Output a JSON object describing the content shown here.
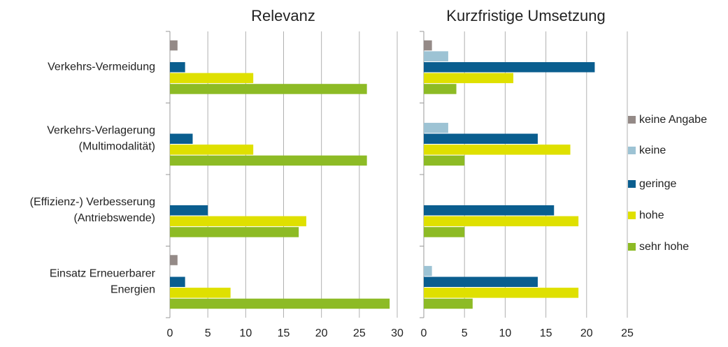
{
  "chart_data": [
    {
      "type": "bar",
      "orientation": "horizontal",
      "title": "Relevanz",
      "categories": [
        [
          "Verkehrs-Vermeidung"
        ],
        [
          "Verkehrs-Verlagerung",
          "(Multimodalität)"
        ],
        [
          "(Effizienz-) Verbesserung",
          "(Antriebswende)"
        ],
        [
          "Einsatz Erneuerbarer",
          "Energien"
        ]
      ],
      "series": [
        {
          "name": "keine Angabe",
          "color": "#948a87",
          "values": [
            1,
            0,
            0,
            1
          ]
        },
        {
          "name": "keine",
          "color": "#9dc3d4",
          "values": [
            0,
            0,
            0,
            0
          ]
        },
        {
          "name": "geringe",
          "color": "#0a5e8f",
          "values": [
            2,
            3,
            5,
            2
          ]
        },
        {
          "name": "hohe",
          "color": "#dfe000",
          "values": [
            11,
            11,
            18,
            8
          ]
        },
        {
          "name": "sehr hohe",
          "color": "#8dbb25",
          "values": [
            26,
            26,
            17,
            29
          ]
        }
      ],
      "xlim": [
        0,
        30
      ],
      "xticks": [
        0,
        5,
        10,
        15,
        20,
        25,
        30
      ],
      "grid": true
    },
    {
      "type": "bar",
      "orientation": "horizontal",
      "title": "Kurzfristige Umsetzung",
      "series": [
        {
          "color": "#948a87",
          "values": [
            1,
            0,
            0,
            0
          ]
        },
        {
          "color": "#9dc3d4",
          "values": [
            3,
            3,
            0,
            1
          ]
        },
        {
          "color": "#0a5e8f",
          "values": [
            21,
            14,
            16,
            14
          ]
        },
        {
          "color": "#dfe000",
          "values": [
            11,
            18,
            19,
            19
          ]
        },
        {
          "color": "#8dbb25",
          "values": [
            4,
            5,
            5,
            6
          ]
        }
      ],
      "xlim": [
        0,
        25
      ],
      "xticks": [
        0,
        5,
        10,
        15,
        20,
        25
      ],
      "grid": true
    }
  ]
}
